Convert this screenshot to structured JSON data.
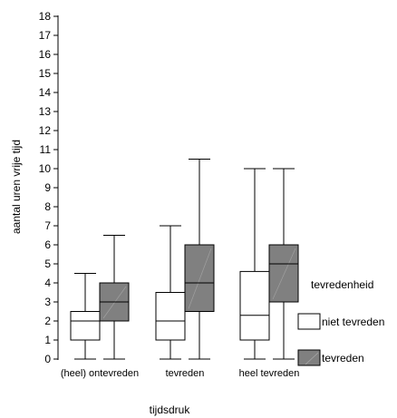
{
  "chart_data": {
    "type": "boxplot",
    "xlabel": "tijdsdruk",
    "ylabel": "aantal uren vrije tijd",
    "ylim": [
      0,
      18
    ],
    "yticks": [
      0,
      1,
      2,
      3,
      4,
      5,
      6,
      7,
      8,
      9,
      10,
      11,
      12,
      13,
      14,
      15,
      16,
      17,
      18
    ],
    "grid": false,
    "categories": [
      "(heel) ontevreden",
      "tevreden",
      "heel tevreden"
    ],
    "legend": {
      "title": "tevredenheid",
      "placement": "right"
    },
    "series": [
      {
        "name": "niet tevreden",
        "color": "#ffffff",
        "boxes": [
          {
            "min": 0,
            "q1": 1,
            "median": 2,
            "q3": 2.5,
            "max": 4.5
          },
          {
            "min": 0,
            "q1": 1,
            "median": 2,
            "q3": 3.5,
            "max": 7
          },
          {
            "min": 0,
            "q1": 1,
            "median": 2.3,
            "q3": 4.6,
            "max": 10
          }
        ]
      },
      {
        "name": "tevreden",
        "color": "#808080",
        "boxes": [
          {
            "min": 0,
            "q1": 2,
            "median": 3,
            "q3": 4,
            "max": 6.5
          },
          {
            "min": 0,
            "q1": 2.5,
            "median": 4,
            "q3": 6,
            "max": 10.5
          },
          {
            "min": 0,
            "q1": 3,
            "median": 5,
            "q3": 6,
            "max": 10
          }
        ]
      }
    ]
  }
}
